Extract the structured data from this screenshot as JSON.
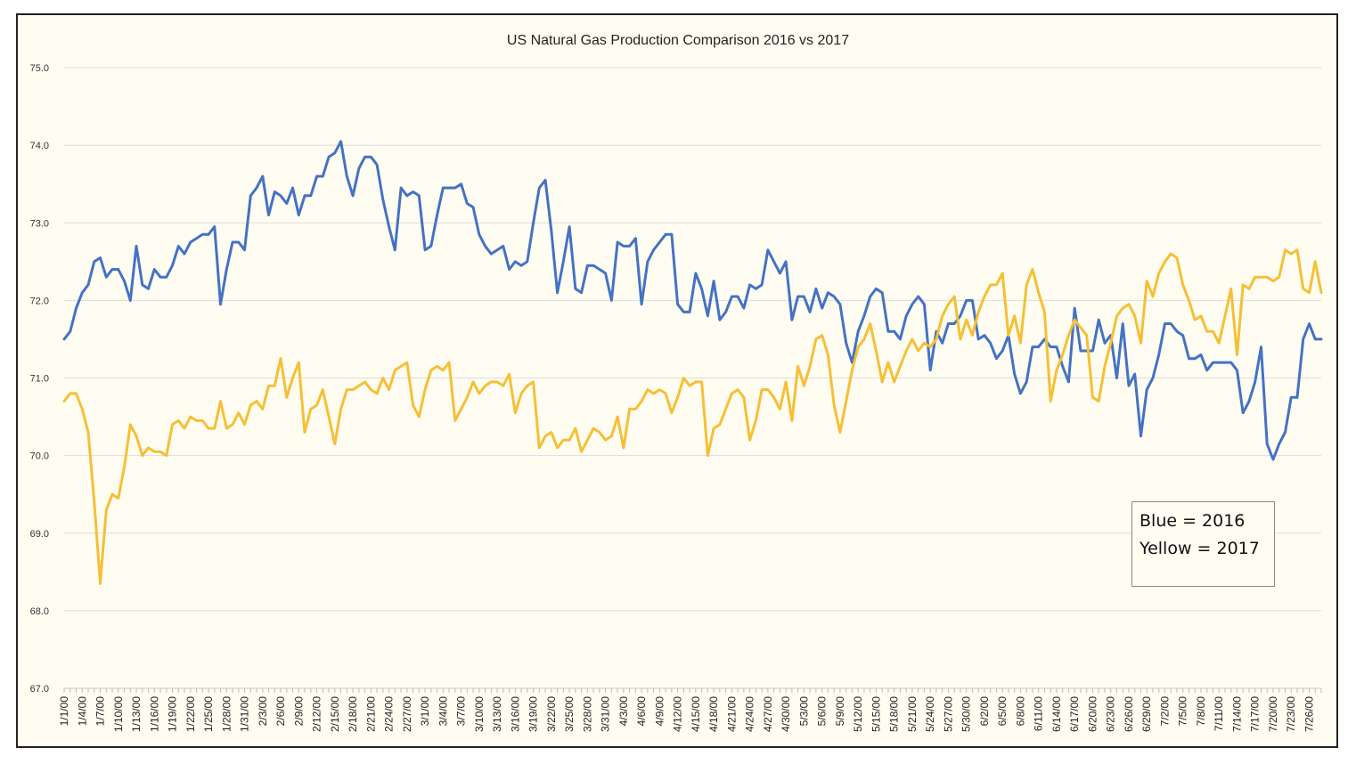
{
  "chart_data": {
    "type": "line",
    "title": "US Natural Gas Production Comparison 2016 vs 2017",
    "ylim": [
      67.0,
      75.0
    ],
    "y_ticks": [
      "67.0",
      "68.0",
      "69.0",
      "70.0",
      "71.0",
      "72.0",
      "73.0",
      "74.0",
      "75.0"
    ],
    "x_tick_labels": [
      "1/1/00",
      "1/4/00",
      "1/7/00",
      "1/10/00",
      "1/13/00",
      "1/16/00",
      "1/19/00",
      "1/22/00",
      "1/25/00",
      "1/28/00",
      "1/31/00",
      "2/3/00",
      "2/6/00",
      "2/9/00",
      "2/12/00",
      "2/15/00",
      "2/18/00",
      "2/21/00",
      "2/24/00",
      "2/27/00",
      "3/1/00",
      "3/4/00",
      "3/7/00",
      "3/10/00",
      "3/13/00",
      "3/16/00",
      "3/19/00",
      "3/22/00",
      "3/25/00",
      "3/28/00",
      "3/31/00",
      "4/3/00",
      "4/6/00",
      "4/9/00",
      "4/12/00",
      "4/15/00",
      "4/18/00",
      "4/21/00",
      "4/24/00",
      "4/27/00",
      "4/30/00",
      "5/3/00",
      "5/6/00",
      "5/9/00",
      "5/12/00",
      "5/15/00",
      "5/18/00",
      "5/21/00",
      "5/24/00",
      "5/27/00",
      "5/30/00",
      "6/2/00",
      "6/5/00",
      "6/8/00",
      "6/11/00",
      "6/14/00",
      "6/17/00",
      "6/20/00",
      "6/23/00",
      "6/26/00",
      "6/29/00",
      "7/2/00",
      "7/5/00",
      "7/8/00",
      "7/11/00",
      "7/14/00",
      "7/17/00",
      "7/20/00",
      "7/23/00",
      "7/26/00"
    ],
    "grid": true,
    "colors": {
      "series_2016": "#4472c4",
      "series_2017": "#f6bf35"
    },
    "series": [
      {
        "key": "2016",
        "values": [
          71.5,
          71.6,
          71.9,
          72.1,
          72.2,
          72.5,
          72.55,
          72.3,
          72.4,
          72.4,
          72.25,
          72.0,
          72.7,
          72.2,
          72.15,
          72.4,
          72.3,
          72.3,
          72.45,
          72.7,
          72.6,
          72.75,
          72.8,
          72.85,
          72.85,
          72.95,
          71.95,
          72.4,
          72.75,
          72.75,
          72.65,
          73.35,
          73.45,
          73.6,
          73.1,
          73.4,
          73.35,
          73.25,
          73.45,
          73.1,
          73.35,
          73.35,
          73.6,
          73.6,
          73.85,
          73.9,
          74.05,
          73.6,
          73.35,
          73.7,
          73.85,
          73.85,
          73.75,
          73.3,
          72.95,
          72.65,
          73.45,
          73.35,
          73.4,
          73.35,
          72.65,
          72.7,
          73.1,
          73.45,
          73.45,
          73.45,
          73.5,
          73.25,
          73.2,
          72.85,
          72.7,
          72.6,
          72.65,
          72.7,
          72.4,
          72.5,
          72.45,
          72.5,
          73.0,
          73.45,
          73.55,
          72.9,
          72.1,
          72.5,
          72.95,
          72.15,
          72.1,
          72.45,
          72.45,
          72.4,
          72.35,
          72.0,
          72.75,
          72.7,
          72.7,
          72.8,
          71.95,
          72.5,
          72.65,
          72.75,
          72.85,
          72.85,
          71.95,
          71.85,
          71.85,
          72.35,
          72.15,
          71.8,
          72.25,
          71.75,
          71.85,
          72.05,
          72.05,
          71.9,
          72.2,
          72.15,
          72.2,
          72.65,
          72.5,
          72.35,
          72.5,
          71.75,
          72.05,
          72.05,
          71.85,
          72.15,
          71.9,
          72.1,
          72.05,
          71.95,
          71.45,
          71.2,
          71.6,
          71.8,
          72.05,
          72.15,
          72.1,
          71.6,
          71.6,
          71.5,
          71.8,
          71.95,
          72.05,
          71.95,
          71.1,
          71.6,
          71.45,
          71.7,
          71.7,
          71.8,
          72.0,
          72.0,
          71.5,
          71.55,
          71.45,
          71.25,
          71.35,
          71.55,
          71.05,
          70.8,
          70.95,
          71.4,
          71.4,
          71.5,
          71.4,
          71.4,
          71.15,
          70.95,
          71.9,
          71.35,
          71.35,
          71.35,
          71.75,
          71.45,
          71.55,
          71.0,
          71.7,
          70.9,
          71.05,
          70.25,
          70.85,
          71.0,
          71.3,
          71.7,
          71.7,
          71.6,
          71.55,
          71.25,
          71.25,
          71.3,
          71.1,
          71.2,
          71.2,
          71.2,
          71.2,
          71.1,
          70.55,
          70.7,
          70.95,
          71.4,
          70.15,
          69.95,
          70.15,
          70.3,
          70.75,
          70.75,
          71.5,
          71.7,
          71.5,
          71.5
        ]
      },
      {
        "key": "2017",
        "values": [
          70.7,
          70.8,
          70.8,
          70.6,
          70.3,
          69.4,
          68.35,
          69.3,
          69.5,
          69.45,
          69.85,
          70.4,
          70.25,
          70.0,
          70.1,
          70.05,
          70.05,
          70.0,
          70.4,
          70.45,
          70.35,
          70.5,
          70.45,
          70.45,
          70.35,
          70.35,
          70.7,
          70.35,
          70.4,
          70.55,
          70.4,
          70.65,
          70.7,
          70.6,
          70.9,
          70.9,
          71.25,
          70.75,
          71.0,
          71.2,
          70.3,
          70.6,
          70.65,
          70.85,
          70.5,
          70.15,
          70.6,
          70.85,
          70.85,
          70.9,
          70.95,
          70.85,
          70.8,
          71.0,
          70.85,
          71.1,
          71.15,
          71.2,
          70.65,
          70.5,
          70.85,
          71.1,
          71.15,
          71.1,
          71.2,
          70.45,
          70.6,
          70.75,
          70.95,
          70.8,
          70.9,
          70.95,
          70.95,
          70.9,
          71.05,
          70.55,
          70.8,
          70.9,
          70.95,
          70.1,
          70.25,
          70.3,
          70.1,
          70.2,
          70.2,
          70.35,
          70.05,
          70.2,
          70.35,
          70.3,
          70.2,
          70.25,
          70.5,
          70.1,
          70.6,
          70.6,
          70.7,
          70.85,
          70.8,
          70.85,
          70.8,
          70.55,
          70.75,
          71.0,
          70.9,
          70.95,
          70.95,
          70.0,
          70.35,
          70.4,
          70.6,
          70.8,
          70.85,
          70.75,
          70.2,
          70.45,
          70.85,
          70.85,
          70.75,
          70.6,
          70.95,
          70.45,
          71.15,
          70.9,
          71.15,
          71.5,
          71.55,
          71.3,
          70.65,
          70.3,
          70.7,
          71.1,
          71.4,
          71.5,
          71.7,
          71.35,
          70.95,
          71.2,
          70.95,
          71.15,
          71.35,
          71.5,
          71.35,
          71.45,
          71.4,
          71.5,
          71.8,
          71.95,
          72.05,
          71.5,
          71.75,
          71.55,
          71.85,
          72.05,
          72.2,
          72.2,
          72.35,
          71.55,
          71.8,
          71.45,
          72.2,
          72.4,
          72.1,
          71.85,
          70.7,
          71.1,
          71.3,
          71.55,
          71.75,
          71.65,
          71.55,
          70.75,
          70.7,
          71.15,
          71.45,
          71.8,
          71.9,
          71.95,
          71.8,
          71.45,
          72.25,
          72.05,
          72.35,
          72.5,
          72.6,
          72.55,
          72.2,
          72.0,
          71.75,
          71.8,
          71.6,
          71.6,
          71.45,
          71.8,
          72.15,
          71.3,
          72.2,
          72.15,
          72.3,
          72.3,
          72.3,
          72.25,
          72.3,
          72.65,
          72.6,
          72.65,
          72.15,
          72.1,
          72.5,
          72.1
        ]
      }
    ]
  },
  "legend": {
    "line1": "Blue = 2016",
    "line2": "Yellow = 2017"
  }
}
